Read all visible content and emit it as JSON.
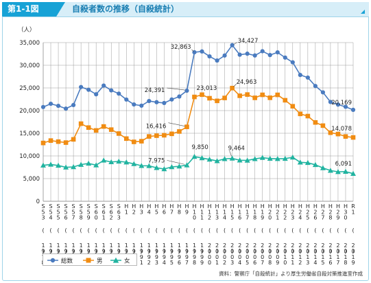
{
  "header": {
    "figure_label": "第1-1図",
    "title": "自殺者数の推移（自殺統計）"
  },
  "source": "資料：警察庁「自殺統計」より厚生労働省自殺対策推進室作成",
  "colors": {
    "total": "#4a7bbf",
    "male": "#f08c12",
    "female": "#21b3a0",
    "grid": "#999999",
    "header_accent": "#17a2d6"
  },
  "chart_data": {
    "type": "line",
    "ylabel": "（人）",
    "ylim": [
      0,
      35000
    ],
    "y_ticks": [
      "0",
      "5,000",
      "10,000",
      "15,000",
      "20,000",
      "25,000",
      "30,000",
      "35,000"
    ],
    "grid": true,
    "legend_position": "bottom-left",
    "x_labels": [
      [
        "S",
        "5",
        "3",
        "",
        "1",
        "9",
        "7",
        "8"
      ],
      [
        "S",
        "5",
        "4",
        "",
        "1",
        "9",
        "7",
        "9"
      ],
      [
        "S",
        "5",
        "5",
        "",
        "1",
        "9",
        "8",
        "0"
      ],
      [
        "S",
        "5",
        "6",
        "",
        "1",
        "9",
        "8",
        "1"
      ],
      [
        "S",
        "5",
        "7",
        "",
        "1",
        "9",
        "8",
        "2"
      ],
      [
        "S",
        "5",
        "8",
        "",
        "1",
        "9",
        "8",
        "3"
      ],
      [
        "S",
        "5",
        "9",
        "",
        "1",
        "9",
        "8",
        "4"
      ],
      [
        "S",
        "6",
        "0",
        "",
        "1",
        "9",
        "8",
        "5"
      ],
      [
        "S",
        "6",
        "1",
        "",
        "1",
        "9",
        "8",
        "6"
      ],
      [
        "S",
        "6",
        "2",
        "",
        "1",
        "9",
        "8",
        "7"
      ],
      [
        "S",
        "6",
        "3",
        "",
        "1",
        "9",
        "8",
        "8"
      ],
      [
        "H",
        "1",
        "",
        "",
        "1",
        "9",
        "8",
        "9"
      ],
      [
        "H",
        "2",
        "",
        "",
        "1",
        "9",
        "9",
        "0"
      ],
      [
        "H",
        "3",
        "",
        "",
        "1",
        "9",
        "9",
        "1"
      ],
      [
        "H",
        "4",
        "",
        "",
        "1",
        "9",
        "9",
        "2"
      ],
      [
        "H",
        "5",
        "",
        "",
        "1",
        "9",
        "9",
        "3"
      ],
      [
        "H",
        "6",
        "",
        "",
        "1",
        "9",
        "9",
        "4"
      ],
      [
        "H",
        "7",
        "",
        "",
        "1",
        "9",
        "9",
        "5"
      ],
      [
        "H",
        "8",
        "",
        "",
        "1",
        "9",
        "9",
        "6"
      ],
      [
        "H",
        "9",
        "",
        "",
        "1",
        "9",
        "9",
        "7"
      ],
      [
        "H",
        "1",
        "0",
        "",
        "1",
        "9",
        "9",
        "8"
      ],
      [
        "H",
        "1",
        "1",
        "",
        "1",
        "9",
        "9",
        "9"
      ],
      [
        "H",
        "1",
        "2",
        "",
        "2",
        "0",
        "0",
        "0"
      ],
      [
        "H",
        "1",
        "3",
        "",
        "2",
        "0",
        "0",
        "1"
      ],
      [
        "H",
        "1",
        "4",
        "",
        "2",
        "0",
        "0",
        "2"
      ],
      [
        "H",
        "1",
        "5",
        "",
        "2",
        "0",
        "0",
        "3"
      ],
      [
        "H",
        "1",
        "6",
        "",
        "2",
        "0",
        "0",
        "4"
      ],
      [
        "H",
        "1",
        "7",
        "",
        "2",
        "0",
        "0",
        "5"
      ],
      [
        "H",
        "1",
        "8",
        "",
        "2",
        "0",
        "0",
        "6"
      ],
      [
        "H",
        "1",
        "9",
        "",
        "2",
        "0",
        "0",
        "7"
      ],
      [
        "H",
        "2",
        "0",
        "",
        "2",
        "0",
        "0",
        "8"
      ],
      [
        "H",
        "2",
        "1",
        "",
        "2",
        "0",
        "0",
        "9"
      ],
      [
        "H",
        "2",
        "2",
        "",
        "2",
        "0",
        "1",
        "0"
      ],
      [
        "H",
        "2",
        "3",
        "",
        "2",
        "0",
        "1",
        "1"
      ],
      [
        "H",
        "2",
        "4",
        "",
        "2",
        "0",
        "1",
        "2"
      ],
      [
        "H",
        "2",
        "5",
        "",
        "2",
        "0",
        "1",
        "3"
      ],
      [
        "H",
        "2",
        "6",
        "",
        "2",
        "0",
        "1",
        "4"
      ],
      [
        "H",
        "2",
        "7",
        "",
        "2",
        "0",
        "1",
        "5"
      ],
      [
        "H",
        "2",
        "8",
        "",
        "2",
        "0",
        "1",
        "6"
      ],
      [
        "H",
        "2",
        "9",
        "",
        "2",
        "0",
        "1",
        "7"
      ],
      [
        "H",
        "3",
        "0",
        "",
        "2",
        "0",
        "1",
        "8"
      ],
      [
        "R",
        "1",
        "",
        "",
        "2",
        "0",
        "1",
        "9"
      ]
    ],
    "series": [
      {
        "name": "総数",
        "key": "total",
        "values": [
          20788,
          21503,
          21048,
          20434,
          21228,
          25202,
          24596,
          23599,
          25524,
          24460,
          23742,
          22436,
          21346,
          21084,
          22104,
          21851,
          21679,
          22445,
          23104,
          24391,
          32863,
          33048,
          31957,
          31042,
          32143,
          34427,
          32325,
          32552,
          32155,
          33093,
          32249,
          32845,
          31690,
          30651,
          27858,
          27283,
          25427,
          24025,
          21897,
          21321,
          20840,
          20169
        ]
      },
      {
        "name": "男",
        "key": "male",
        "values": [
          12859,
          13386,
          13155,
          12942,
          13654,
          17116,
          16251,
          15624,
          16497,
          15802,
          14934,
          13818,
          13102,
          13242,
          14296,
          14468,
          14560,
          14874,
          15393,
          16416,
          23013,
          23512,
          22727,
          22144,
          22789,
          24963,
          23272,
          23540,
          22813,
          23478,
          22831,
          23472,
          22283,
          20955,
          19273,
          18787,
          17386,
          16681,
          15121,
          14826,
          14290,
          14078
        ]
      },
      {
        "name": "女",
        "key": "female",
        "values": [
          7929,
          8117,
          7893,
          7492,
          7574,
          8086,
          8345,
          7975,
          9027,
          8658,
          8808,
          8618,
          8244,
          7842,
          7808,
          7383,
          7119,
          7571,
          7711,
          7975,
          9850,
          9536,
          9230,
          8898,
          9354,
          9464,
          9053,
          9012,
          9342,
          9615,
          9418,
          9373,
          9407,
          9696,
          8585,
          8496,
          8041,
          7344,
          6776,
          6495,
          6550,
          6091
        ]
      }
    ],
    "annotations": [
      {
        "series": "total",
        "index": 19,
        "text": "24,391"
      },
      {
        "series": "total",
        "index": 20,
        "text": "32,863"
      },
      {
        "series": "total",
        "index": 25,
        "text": "34,427"
      },
      {
        "series": "total",
        "index": 41,
        "text": "20,169"
      },
      {
        "series": "male",
        "index": 19,
        "text": "16,416"
      },
      {
        "series": "male",
        "index": 20,
        "text": "23,013"
      },
      {
        "series": "male",
        "index": 25,
        "text": "24,963"
      },
      {
        "series": "male",
        "index": 41,
        "text": "14,078"
      },
      {
        "series": "female",
        "index": 19,
        "text": "7,975"
      },
      {
        "series": "female",
        "index": 20,
        "text": "9,850"
      },
      {
        "series": "female",
        "index": 25,
        "text": "9,464"
      },
      {
        "series": "female",
        "index": 41,
        "text": "6,091"
      }
    ]
  }
}
